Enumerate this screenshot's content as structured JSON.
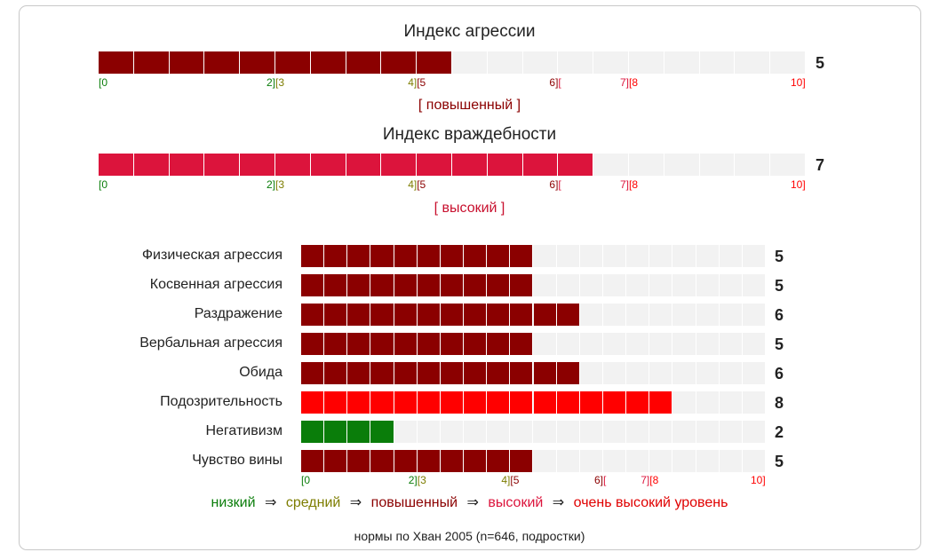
{
  "colors": {
    "low": "#0a7d0a",
    "medium": "#7d7d00",
    "elevated": "#8b0000",
    "high": "#dc143c",
    "very_high": "#ff0000",
    "track": "#f2f2f2",
    "elevated_label": "#8b0000",
    "high_label": "#c8102e"
  },
  "scale": {
    "max": 10,
    "ticks": [
      {
        "text": "[0",
        "pos": 0,
        "color": "low"
      },
      {
        "text": "2][3",
        "pos": 2.5,
        "color": "medium_split"
      },
      {
        "text": "4][5",
        "pos": 4.5,
        "color": "elevated_split"
      },
      {
        "text": "6][",
        "pos": 6.5,
        "color": "high_split"
      },
      {
        "text": "7][8",
        "pos": 7.5,
        "color": "very_split"
      },
      {
        "text": "10]",
        "pos": 10,
        "color": "very_high"
      }
    ]
  },
  "chart_data": [
    {
      "type": "bar",
      "title": "Индекс агрессии",
      "value": 5,
      "max": 10,
      "level_label": "[ повышенный ]",
      "level": "elevated"
    },
    {
      "type": "bar",
      "title": "Индекс враждебности",
      "value": 7,
      "max": 10,
      "level_label": "[ высокий ]",
      "level": "high"
    },
    {
      "type": "bar",
      "title": "",
      "max": 10,
      "categories": [
        "Физическая агрессия",
        "Косвенная агрессия",
        "Раздражение",
        "Вербальная агрессия",
        "Обида",
        "Подозрительность",
        "Негативизм",
        "Чувство вины"
      ],
      "values": [
        5,
        5,
        6,
        5,
        6,
        8,
        2,
        5
      ],
      "levels": [
        "elevated",
        "elevated",
        "elevated",
        "elevated",
        "elevated",
        "very_high",
        "low",
        "elevated"
      ]
    }
  ],
  "legend": {
    "low": "низкий",
    "medium": "средний",
    "elevated": "повышенный",
    "high": "высокий",
    "very_high": "очень высокий уровень",
    "arrow": "⇒"
  },
  "footnote": "нормы по Хван 2005 (n=646, подростки)"
}
